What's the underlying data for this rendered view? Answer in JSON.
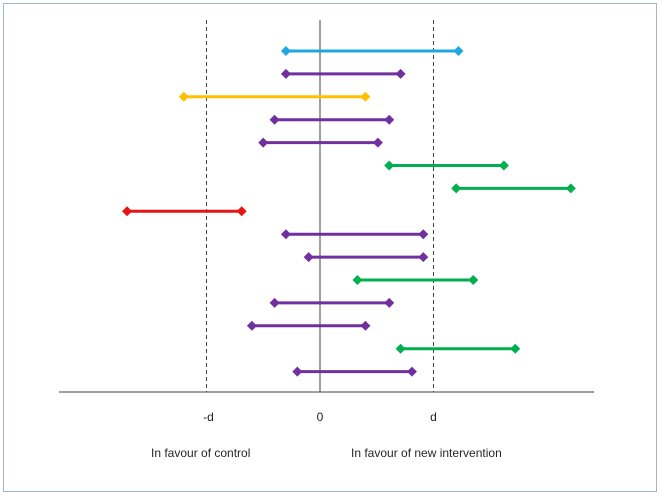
{
  "axis": {
    "tick_labels": {
      "neg_d": "-d",
      "zero": "0",
      "pos_d": "d"
    }
  },
  "labels": {
    "control": "In favour of control",
    "intervention": "In favour of new intervention"
  },
  "colors": {
    "blue": "#1fa7e0",
    "purple": "#7030a0",
    "orange": "#ffc000",
    "green": "#00b050",
    "red": "#e81414",
    "axis": "#404040",
    "reference": "#404040"
  },
  "chart_data": {
    "type": "interval",
    "x_reference_values": {
      "neg_d": -1,
      "zero": 0,
      "pos_d": 1
    },
    "x_range": [
      -2.27,
      2.42
    ],
    "intervals": [
      {
        "low": -0.3,
        "high": 1.22,
        "color": "blue"
      },
      {
        "low": -0.3,
        "high": 0.71,
        "color": "purple"
      },
      {
        "low": -1.2,
        "high": 0.4,
        "color": "orange"
      },
      {
        "low": -0.4,
        "high": 0.61,
        "color": "purple"
      },
      {
        "low": -0.5,
        "high": 0.51,
        "color": "purple"
      },
      {
        "low": 0.61,
        "high": 1.62,
        "color": "green"
      },
      {
        "low": 1.2,
        "high": 2.21,
        "color": "green"
      },
      {
        "low": -1.7,
        "high": -0.69,
        "color": "red"
      },
      {
        "low": -0.3,
        "high": 0.91,
        "color": "purple"
      },
      {
        "low": -0.1,
        "high": 0.91,
        "color": "purple"
      },
      {
        "low": 0.33,
        "high": 1.35,
        "color": "green"
      },
      {
        "low": -0.4,
        "high": 0.61,
        "color": "purple"
      },
      {
        "low": -0.6,
        "high": 0.4,
        "color": "purple"
      },
      {
        "low": 0.71,
        "high": 1.72,
        "color": "green"
      },
      {
        "low": -0.2,
        "high": 0.81,
        "color": "purple"
      }
    ]
  }
}
